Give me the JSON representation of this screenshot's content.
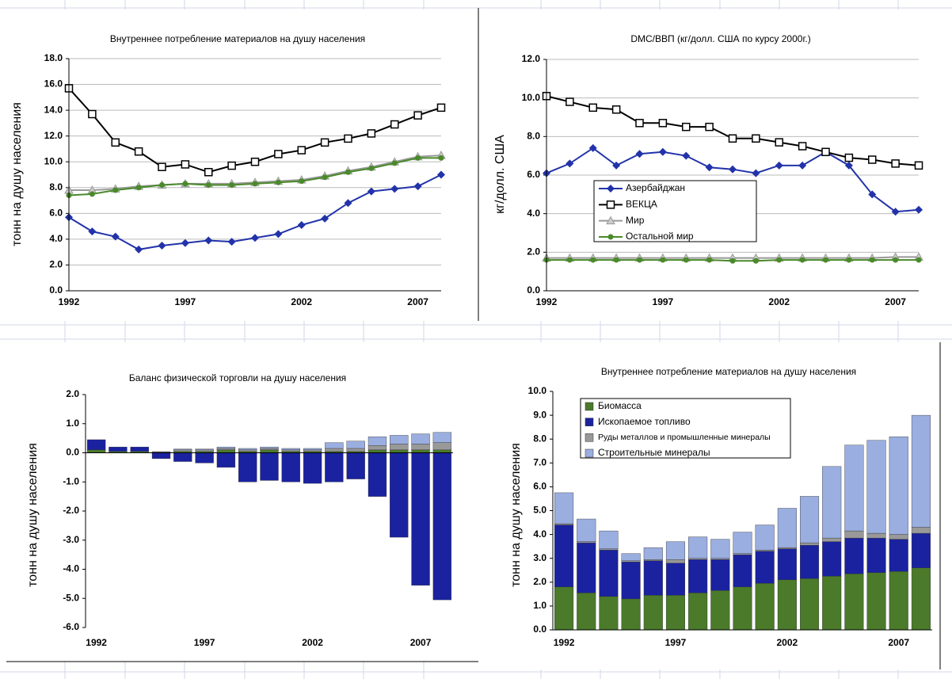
{
  "chart_data": [
    {
      "type": "line",
      "title": "Внутреннее потребление материалов на душу населения",
      "y_label": "тонн на душу населения",
      "categories": [
        "1992",
        null,
        null,
        null,
        null,
        "1997",
        null,
        null,
        null,
        null,
        "2002",
        null,
        null,
        null,
        null,
        "2007",
        null
      ],
      "ylim": [
        0,
        18
      ],
      "yticks": [
        {
          "value": 0,
          "label": "0.0"
        },
        {
          "value": 2,
          "label": "2.0"
        },
        {
          "value": 4,
          "label": "4.0"
        },
        {
          "value": 6,
          "label": "6.0"
        },
        {
          "value": 8,
          "label": "8.0"
        },
        {
          "value": 10,
          "label": "10.0"
        },
        {
          "value": 12,
          "label": "12.0"
        },
        {
          "value": 14,
          "label": "14.0"
        },
        {
          "value": 16,
          "label": "16.0"
        },
        {
          "value": 18,
          "label": "18.0"
        }
      ],
      "grid": true,
      "series": [
        {
          "color": "#2233aa",
          "marker": "diamond",
          "values": [
            5.7,
            4.6,
            4.2,
            3.2,
            3.5,
            3.7,
            3.9,
            3.8,
            4.1,
            4.4,
            5.1,
            5.6,
            6.8,
            7.7,
            7.9,
            8.1,
            9.0
          ]
        },
        {
          "color": "#000000",
          "marker": "square",
          "values": [
            15.7,
            13.7,
            11.5,
            10.8,
            9.6,
            9.8,
            9.2,
            9.7,
            10.0,
            10.6,
            10.9,
            11.5,
            11.8,
            12.2,
            12.9,
            13.6,
            14.2
          ]
        },
        {
          "color": "#999999",
          "marker": "triangle",
          "values": [
            7.8,
            7.8,
            7.9,
            8.1,
            8.2,
            8.3,
            8.3,
            8.3,
            8.4,
            8.5,
            8.6,
            8.9,
            9.3,
            9.6,
            10.0,
            10.4,
            10.5
          ]
        },
        {
          "color": "#4a8a2a",
          "marker": "circle",
          "values": [
            7.4,
            7.5,
            7.8,
            8.0,
            8.2,
            8.3,
            8.2,
            8.2,
            8.3,
            8.4,
            8.5,
            8.8,
            9.2,
            9.5,
            9.9,
            10.3,
            10.3
          ]
        }
      ]
    },
    {
      "type": "line",
      "title": "DMC/ВВП (кг/долл. США по курсу 2000г.)",
      "y_label": "кг/долл. США",
      "categories": [
        "1992",
        null,
        null,
        null,
        null,
        "1997",
        null,
        null,
        null,
        null,
        "2002",
        null,
        null,
        null,
        null,
        "2007",
        null
      ],
      "ylim": [
        0,
        12
      ],
      "yticks": [
        {
          "value": 0,
          "label": "0.0"
        },
        {
          "value": 2,
          "label": "2.0"
        },
        {
          "value": 4,
          "label": "4.0"
        },
        {
          "value": 6,
          "label": "6.0"
        },
        {
          "value": 8,
          "label": "8.0"
        },
        {
          "value": 10,
          "label": "10.0"
        },
        {
          "value": 12,
          "label": "12.0"
        }
      ],
      "grid": true,
      "legend": "center left",
      "series": [
        {
          "name": "Азербайджан",
          "color": "#2233aa",
          "marker": "diamond",
          "values": [
            6.1,
            6.6,
            7.4,
            6.5,
            7.1,
            7.2,
            7.0,
            6.4,
            6.3,
            6.1,
            6.5,
            6.5,
            7.2,
            6.5,
            5.0,
            4.1,
            4.2
          ]
        },
        {
          "name": "ВЕКЦА",
          "color": "#000000",
          "marker": "square",
          "values": [
            10.1,
            9.8,
            9.5,
            9.4,
            8.7,
            8.7,
            8.5,
            8.5,
            7.9,
            7.9,
            7.7,
            7.5,
            7.2,
            6.9,
            6.8,
            6.6,
            6.5
          ]
        },
        {
          "name": "Мир",
          "color": "#999999",
          "marker": "triangle",
          "values": [
            1.7,
            1.7,
            1.7,
            1.7,
            1.7,
            1.7,
            1.7,
            1.7,
            1.7,
            1.7,
            1.7,
            1.7,
            1.7,
            1.7,
            1.7,
            1.75,
            1.75
          ]
        },
        {
          "name": "Остальной мир",
          "color": "#4a8a2a",
          "marker": "circle",
          "values": [
            1.6,
            1.6,
            1.6,
            1.6,
            1.6,
            1.6,
            1.6,
            1.6,
            1.55,
            1.55,
            1.6,
            1.6,
            1.6,
            1.6,
            1.6,
            1.6,
            1.6
          ]
        }
      ]
    },
    {
      "type": "bar",
      "title": "Баланс физической торговли на душу населения",
      "y_label": "тонн на душу населения",
      "categories": [
        "1992",
        null,
        null,
        null,
        null,
        "1997",
        null,
        null,
        null,
        null,
        "2002",
        null,
        null,
        null,
        null,
        "2007",
        null
      ],
      "ylim": [
        -6,
        2
      ],
      "yticks": [
        {
          "value": -6,
          "label": "-6.0"
        },
        {
          "value": -5,
          "label": "-5.0"
        },
        {
          "value": -4,
          "label": "-4.0"
        },
        {
          "value": -3,
          "label": "-3.0"
        },
        {
          "value": -2,
          "label": "-2.0"
        },
        {
          "value": -1,
          "label": "-1.0"
        },
        {
          "value": 0,
          "label": "0.0"
        },
        {
          "value": 1,
          "label": "1.0"
        },
        {
          "value": 2,
          "label": "2.0"
        }
      ],
      "grid": false,
      "series": [
        {
          "color": "#4a7a2a",
          "values": [
            0.1,
            0.05,
            0.05,
            0.02,
            0.05,
            0.05,
            0.1,
            0.05,
            0.1,
            0.05,
            0.05,
            0.05,
            0.05,
            0.1,
            0.1,
            0.1,
            0.1
          ]
        },
        {
          "color": "#1a22a0",
          "values": [
            0.35,
            0.15,
            0.15,
            -0.2,
            -0.3,
            -0.35,
            -0.5,
            -1.0,
            -0.95,
            -1.0,
            -1.05,
            -1.0,
            -0.9,
            -1.5,
            -2.9,
            -4.55,
            -5.05
          ]
        },
        {
          "color": "#999999",
          "values": [
            0,
            0,
            0,
            0.02,
            0.05,
            0.05,
            0.05,
            0.05,
            0.05,
            0.05,
            0.05,
            0.1,
            0.1,
            0.15,
            0.2,
            0.2,
            0.25
          ]
        },
        {
          "color": "#9aaee0",
          "values": [
            0,
            0,
            0,
            0,
            0.03,
            0.03,
            0.05,
            0.05,
            0.05,
            0.05,
            0.05,
            0.2,
            0.25,
            0.3,
            0.3,
            0.35,
            0.35
          ]
        }
      ]
    },
    {
      "type": "bar",
      "title": "Внутреннее потребление материалов на душу населения",
      "y_label": "тонн на душу населения",
      "categories": [
        "1992",
        null,
        null,
        null,
        null,
        "1997",
        null,
        null,
        null,
        null,
        "2002",
        null,
        null,
        null,
        null,
        "2007",
        null
      ],
      "ylim": [
        0,
        10
      ],
      "yticks": [
        {
          "value": 0,
          "label": "0.0"
        },
        {
          "value": 1,
          "label": "1.0"
        },
        {
          "value": 2,
          "label": "2.0"
        },
        {
          "value": 3,
          "label": "3.0"
        },
        {
          "value": 4,
          "label": "4.0"
        },
        {
          "value": 5,
          "label": "5.0"
        },
        {
          "value": 6,
          "label": "6.0"
        },
        {
          "value": 7,
          "label": "7.0"
        },
        {
          "value": 8,
          "label": "8.0"
        },
        {
          "value": 9,
          "label": "9.0"
        },
        {
          "value": 10,
          "label": "10.0"
        }
      ],
      "grid": false,
      "legend": "upper left",
      "series": [
        {
          "name": "Биомасса",
          "color": "#4a7a2a",
          "values": [
            1.8,
            1.55,
            1.4,
            1.3,
            1.45,
            1.45,
            1.55,
            1.65,
            1.8,
            1.95,
            2.1,
            2.15,
            2.25,
            2.35,
            2.4,
            2.45,
            2.6
          ]
        },
        {
          "name": "Ископаемое топливо",
          "color": "#1a22a0",
          "values": [
            2.6,
            2.1,
            1.95,
            1.55,
            1.45,
            1.35,
            1.4,
            1.3,
            1.35,
            1.35,
            1.3,
            1.4,
            1.45,
            1.5,
            1.45,
            1.35,
            1.45
          ]
        },
        {
          "name": "Руды металлов и промышленные минералы",
          "color": "#999999",
          "values": [
            0.05,
            0.05,
            0.05,
            0.05,
            0.05,
            0.15,
            0.05,
            0.05,
            0.05,
            0.05,
            0.05,
            0.1,
            0.15,
            0.3,
            0.2,
            0.2,
            0.25
          ]
        },
        {
          "name": "Строительные минералы",
          "color": "#9aaee0",
          "values": [
            1.3,
            0.95,
            0.75,
            0.3,
            0.5,
            0.75,
            0.9,
            0.8,
            0.9,
            1.05,
            1.65,
            1.95,
            3.0,
            3.6,
            3.9,
            4.1,
            4.7
          ]
        }
      ]
    }
  ]
}
